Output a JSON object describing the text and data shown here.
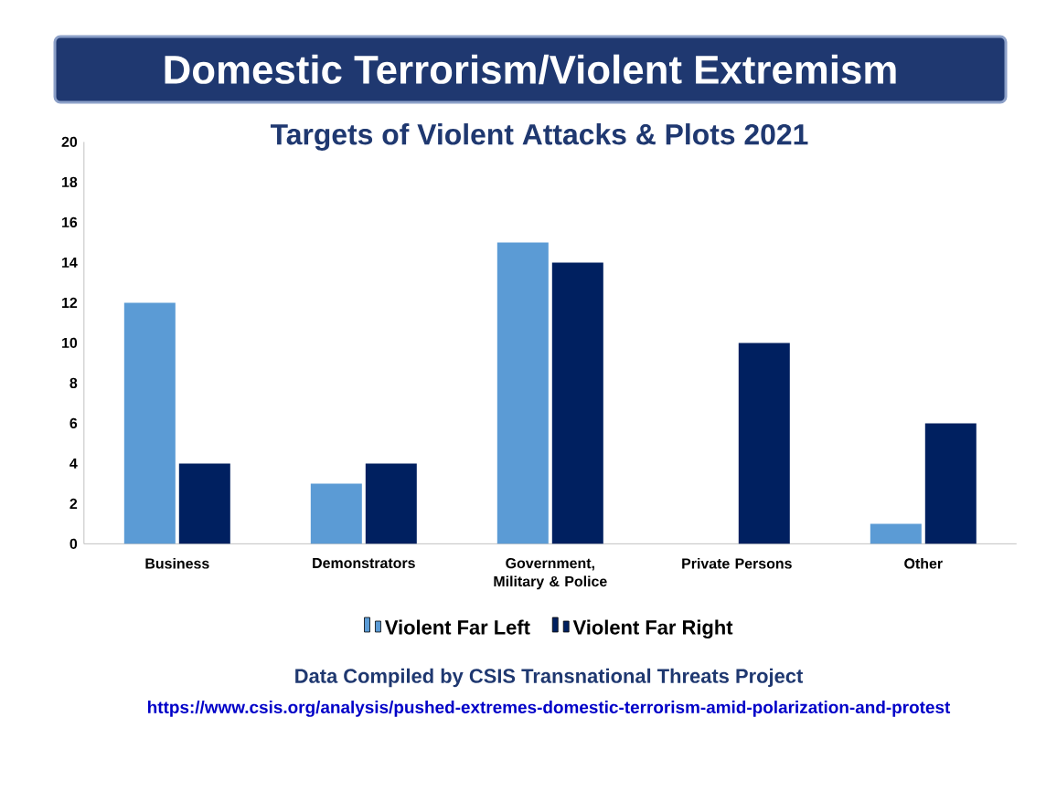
{
  "chart_data": {
    "type": "bar",
    "title": "Domestic Terrorism/Violent Extremism",
    "subtitle": "Targets of Violent Attacks & Plots 2021",
    "categories": [
      "Business",
      "Demonstrators",
      "Government, Military & Police",
      "Private Persons",
      "Other"
    ],
    "series": [
      {
        "name": "Violent Far Left",
        "color": "#5b9bd5",
        "values": [
          12,
          3,
          15,
          0,
          1
        ]
      },
      {
        "name": "Violent Far Right",
        "color": "#002060",
        "values": [
          4,
          4,
          14,
          10,
          6
        ]
      }
    ],
    "ylim": [
      0,
      20
    ],
    "yticks": [
      0,
      2,
      4,
      6,
      8,
      10,
      12,
      14,
      16,
      18,
      20
    ],
    "grid": false,
    "legend": "bottom",
    "annotations": [
      "Data Compiled by CSIS Transnational Threats Project",
      "https://www.csis.org/analysis/pushed-extremes-domestic-terrorism-amid-polarization-and-protest"
    ]
  }
}
